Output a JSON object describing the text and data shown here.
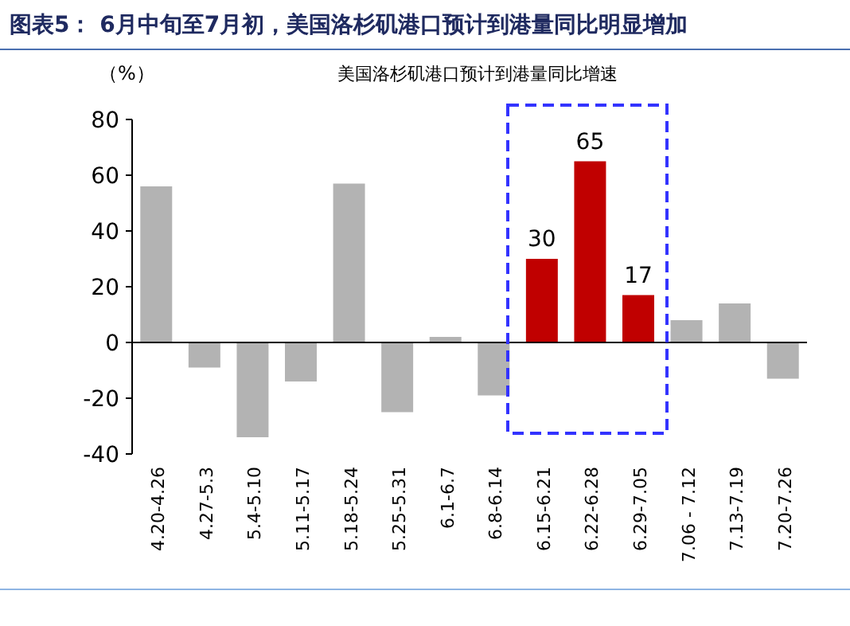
{
  "chart_data": {
    "type": "bar",
    "title": "图表5： 6月中旬至7月初，美国洛杉矶港口预计到港量同比明显增加",
    "subtitle": "美国洛杉矶港口预计到港量同比增速",
    "ylabel": "（%）",
    "categories": [
      "4.20-4.26",
      "4.27-5.3",
      "5.4-5.10",
      "5.11-5.17",
      "5.18-5.24",
      "5.25-5.31",
      "6.1-6.7",
      "6.8-6.14",
      "6.15-6.21",
      "6.22-6.28",
      "6.29-7.05",
      "7.06 - 7.12",
      "7.13-7.19",
      "7.20-7.26"
    ],
    "values": [
      56,
      -9,
      -34,
      -14,
      57,
      -25,
      2,
      -19,
      30,
      65,
      17,
      8,
      14,
      -13
    ],
    "colors": [
      "#b3b3b3",
      "#b3b3b3",
      "#b3b3b3",
      "#b3b3b3",
      "#b3b3b3",
      "#b3b3b3",
      "#b3b3b3",
      "#b3b3b3",
      "#c00000",
      "#c00000",
      "#c00000",
      "#b3b3b3",
      "#b3b3b3",
      "#b3b3b3"
    ],
    "value_labels": [
      null,
      null,
      null,
      null,
      null,
      null,
      null,
      null,
      "30",
      "65",
      "17",
      null,
      null,
      null
    ],
    "ylim": [
      -40,
      80
    ],
    "yticks": [
      -40,
      -20,
      0,
      20,
      40,
      60,
      80
    ]
  }
}
